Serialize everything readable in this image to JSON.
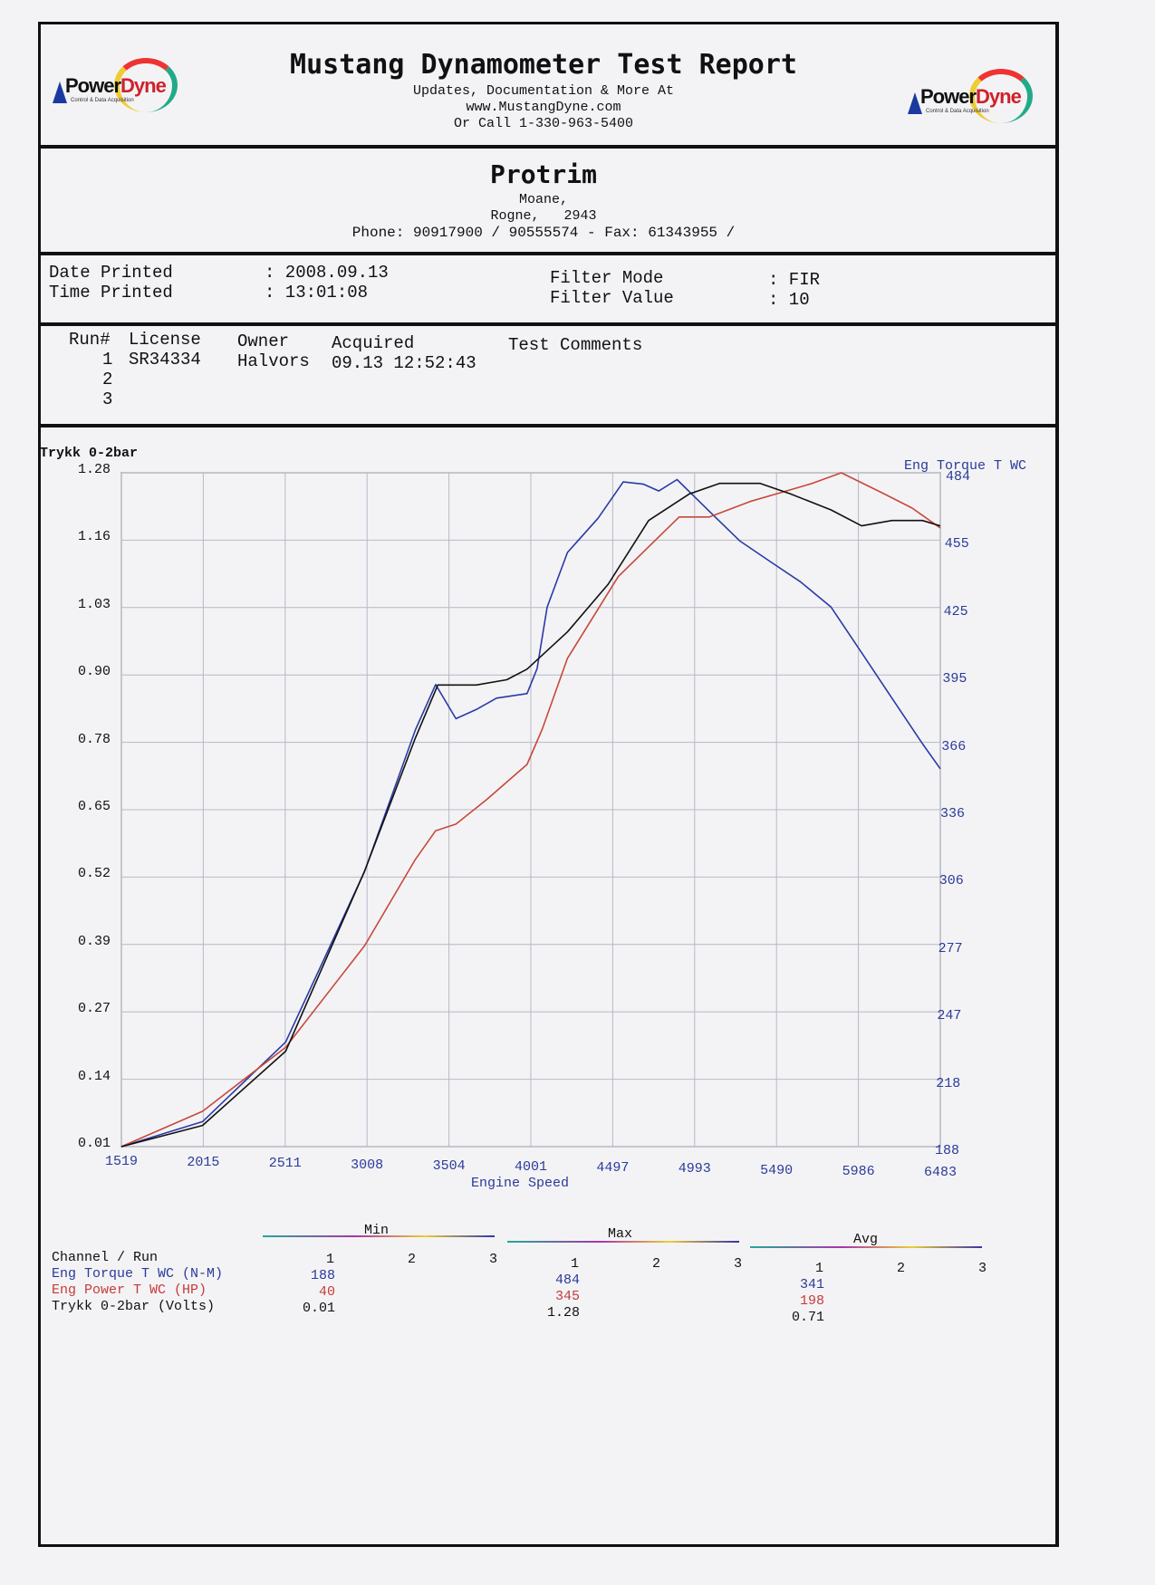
{
  "header": {
    "title": "Mustang Dynamometer Test Report",
    "line1": "Updates, Documentation & More At",
    "line2": "www.MustangDyne.com",
    "line3": "Or Call 1-330-963-5400",
    "logo_text": "PowerDyne",
    "logo_tag": "Control & Data Acquisition"
  },
  "customer": {
    "name": "Protrim",
    "addr1": "Moane,",
    "addr2": "Rogne,   2943",
    "phone": "Phone: 90917900 / 90555574 - Fax: 61343955 /"
  },
  "print_info": {
    "date_label": "Date Printed",
    "date_value": ": 2008.09.13",
    "time_label": "Time Printed",
    "time_value": ": 13:01:08",
    "filter_mode_label": "Filter Mode",
    "filter_mode_value": ": FIR",
    "filter_value_label": "Filter Value",
    "filter_value_value": ": 10"
  },
  "runs": {
    "headers": [
      "Run#",
      "License",
      "Owner",
      "Acquired",
      "Test Comments"
    ],
    "rows": [
      {
        "run": "1",
        "license": "SR34334",
        "owner": "Halvors",
        "acquired": "09.13 12:52:43"
      },
      {
        "run": "2"
      },
      {
        "run": "3"
      }
    ]
  },
  "chart_data": {
    "type": "line",
    "xlabel": "Engine Speed",
    "ylabel_left": "Trykk 0-2bar",
    "ylabel_right": "Eng Torque T WC",
    "x_ticks": [
      "1519",
      "2015",
      "2511",
      "3008",
      "3504",
      "4001",
      "4497",
      "4993",
      "5490",
      "5986",
      "6483"
    ],
    "y_left_ticks": [
      "1.28",
      "1.16",
      "1.03",
      "0.90",
      "0.78",
      "0.65",
      "0.52",
      "0.39",
      "0.27",
      "0.14",
      "0.01"
    ],
    "y_right_ticks": [
      "484",
      "455",
      "425",
      "395",
      "366",
      "336",
      "306",
      "277",
      "247",
      "218",
      "188"
    ],
    "xlim": [
      1519,
      6483
    ],
    "ylim_left": [
      0.01,
      1.28
    ],
    "ylim_right": [
      188,
      484
    ],
    "ylim_power": [
      40,
      345
    ],
    "grid": true,
    "colors": {
      "torque": "#2a3aa8",
      "power": "#c8483a",
      "pressure": "#111111"
    },
    "series": [
      {
        "name": "Eng Torque T WC",
        "unit": "N-M",
        "axis": "right",
        "x": [
          1519,
          2011,
          2515,
          2994,
          3301,
          3424,
          3547,
          3670,
          3793,
          3978,
          4039,
          4100,
          4223,
          4408,
          4561,
          4684,
          4777,
          4887,
          5084,
          5269,
          5452,
          5637,
          5821,
          6006,
          6190,
          6375,
          6483
        ],
        "y": [
          188,
          199,
          234,
          309,
          371,
          391,
          376,
          380,
          385,
          387,
          398,
          425,
          449,
          464,
          480,
          479,
          476,
          481,
          467,
          454,
          445,
          436,
          425,
          405,
          385,
          365,
          354
        ]
      },
      {
        "name": "Eng Power T WC",
        "unit": "HP",
        "axis": "power",
        "x": [
          1519,
          2011,
          2515,
          2994,
          3301,
          3424,
          3547,
          3732,
          3978,
          4070,
          4223,
          4531,
          4777,
          4900,
          5084,
          5330,
          5514,
          5698,
          5883,
          6129,
          6313,
          6483
        ],
        "y": [
          40,
          56,
          85,
          131,
          170,
          183,
          186,
          197,
          213,
          229,
          261,
          298,
          316,
          325,
          325,
          332,
          336,
          340,
          345,
          336,
          329,
          320
        ]
      },
      {
        "name": "Trykk 0-2bar",
        "unit": "Volts",
        "axis": "left",
        "x": [
          1519,
          2011,
          2515,
          2994,
          3301,
          3437,
          3670,
          3855,
          3978,
          4223,
          4470,
          4715,
          4961,
          5145,
          5391,
          5576,
          5821,
          6006,
          6190,
          6375,
          6483
        ],
        "y": [
          0.01,
          0.05,
          0.19,
          0.53,
          0.78,
          0.88,
          0.88,
          0.89,
          0.91,
          0.98,
          1.07,
          1.19,
          1.24,
          1.26,
          1.26,
          1.24,
          1.21,
          1.18,
          1.19,
          1.19,
          1.18
        ]
      }
    ]
  },
  "summary": {
    "groups": [
      "Min",
      "Max",
      "Avg"
    ],
    "channel_header": "Channel / Run",
    "run_labels": [
      "1",
      "2",
      "3"
    ],
    "rows": [
      {
        "channel": "Eng Torque T WC (N-M)",
        "min": "188",
        "max": "484",
        "avg": "341"
      },
      {
        "channel": "Eng Power T WC (HP)",
        "min": "40",
        "max": "345",
        "avg": "198"
      },
      {
        "channel": "Trykk 0-2bar (Volts)",
        "min": "0.01",
        "max": "1.28",
        "avg": "0.71"
      }
    ]
  }
}
